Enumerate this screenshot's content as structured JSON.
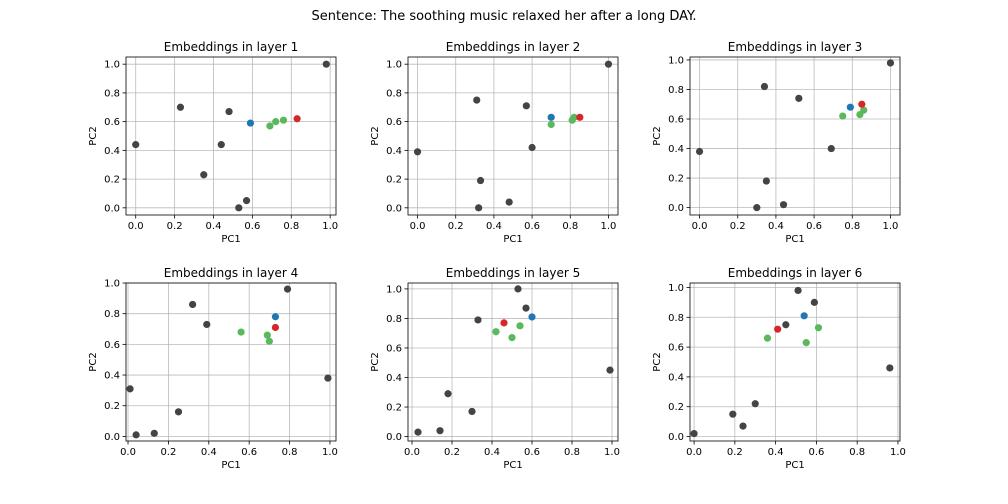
{
  "figure_title": "Sentence: The soothing music relaxed her after a long DAY.",
  "colors": {
    "gray": "#444444",
    "blue": "#1f77b4",
    "red": "#d62728",
    "green": "#5cb85c"
  },
  "chart_data": [
    {
      "type": "scatter",
      "title": "Embeddings in layer 1",
      "xlabel": "PC1",
      "ylabel": "PC2",
      "xlim": [
        -0.05,
        1.03
      ],
      "ylim": [
        -0.05,
        1.05
      ],
      "xticks": [
        "0.0",
        "0.2",
        "0.4",
        "0.6",
        "0.8",
        "1.0"
      ],
      "yticks": [
        "0.0",
        "0.2",
        "0.4",
        "0.6",
        "0.8",
        "1.0"
      ],
      "grid": true,
      "points": [
        {
          "x": 0.0,
          "y": 0.44,
          "color": "gray"
        },
        {
          "x": 0.23,
          "y": 0.7,
          "color": "gray"
        },
        {
          "x": 0.35,
          "y": 0.23,
          "color": "gray"
        },
        {
          "x": 0.44,
          "y": 0.44,
          "color": "gray"
        },
        {
          "x": 0.48,
          "y": 0.67,
          "color": "gray"
        },
        {
          "x": 0.53,
          "y": 0.0,
          "color": "gray"
        },
        {
          "x": 0.57,
          "y": 0.05,
          "color": "gray"
        },
        {
          "x": 0.98,
          "y": 1.0,
          "color": "gray"
        },
        {
          "x": 0.59,
          "y": 0.59,
          "color": "blue"
        },
        {
          "x": 0.69,
          "y": 0.57,
          "color": "green"
        },
        {
          "x": 0.72,
          "y": 0.6,
          "color": "green"
        },
        {
          "x": 0.76,
          "y": 0.61,
          "color": "green"
        },
        {
          "x": 0.83,
          "y": 0.62,
          "color": "red"
        }
      ]
    },
    {
      "type": "scatter",
      "title": "Embeddings in layer 2",
      "xlabel": "PC1",
      "ylabel": "PC2",
      "xlim": [
        -0.05,
        1.05
      ],
      "ylim": [
        -0.05,
        1.05
      ],
      "xticks": [
        "0.0",
        "0.2",
        "0.4",
        "0.6",
        "0.8",
        "1.0"
      ],
      "yticks": [
        "0.0",
        "0.2",
        "0.4",
        "0.6",
        "0.8",
        "1.0"
      ],
      "grid": true,
      "points": [
        {
          "x": 0.0,
          "y": 0.39,
          "color": "gray"
        },
        {
          "x": 0.31,
          "y": 0.75,
          "color": "gray"
        },
        {
          "x": 0.33,
          "y": 0.19,
          "color": "gray"
        },
        {
          "x": 0.32,
          "y": 0.0,
          "color": "gray"
        },
        {
          "x": 0.48,
          "y": 0.04,
          "color": "gray"
        },
        {
          "x": 0.57,
          "y": 0.71,
          "color": "gray"
        },
        {
          "x": 0.6,
          "y": 0.42,
          "color": "gray"
        },
        {
          "x": 1.0,
          "y": 1.0,
          "color": "gray"
        },
        {
          "x": 0.7,
          "y": 0.63,
          "color": "blue"
        },
        {
          "x": 0.7,
          "y": 0.58,
          "color": "green"
        },
        {
          "x": 0.81,
          "y": 0.61,
          "color": "green"
        },
        {
          "x": 0.82,
          "y": 0.63,
          "color": "green"
        },
        {
          "x": 0.85,
          "y": 0.63,
          "color": "red"
        }
      ]
    },
    {
      "type": "scatter",
      "title": "Embeddings in layer 3",
      "xlabel": "PC1",
      "ylabel": "PC2",
      "xlim": [
        -0.05,
        1.05
      ],
      "ylim": [
        -0.05,
        1.02
      ],
      "xticks": [
        "0.0",
        "0.2",
        "0.4",
        "0.6",
        "0.8",
        "1.0"
      ],
      "yticks": [
        "0.0",
        "0.2",
        "0.4",
        "0.6",
        "0.8",
        "1.0"
      ],
      "grid": true,
      "points": [
        {
          "x": 0.0,
          "y": 0.38,
          "color": "gray"
        },
        {
          "x": 0.3,
          "y": 0.0,
          "color": "gray"
        },
        {
          "x": 0.34,
          "y": 0.82,
          "color": "gray"
        },
        {
          "x": 0.35,
          "y": 0.18,
          "color": "gray"
        },
        {
          "x": 0.44,
          "y": 0.02,
          "color": "gray"
        },
        {
          "x": 0.52,
          "y": 0.74,
          "color": "gray"
        },
        {
          "x": 0.69,
          "y": 0.4,
          "color": "gray"
        },
        {
          "x": 1.0,
          "y": 0.98,
          "color": "gray"
        },
        {
          "x": 0.79,
          "y": 0.68,
          "color": "blue"
        },
        {
          "x": 0.75,
          "y": 0.62,
          "color": "green"
        },
        {
          "x": 0.84,
          "y": 0.63,
          "color": "green"
        },
        {
          "x": 0.86,
          "y": 0.66,
          "color": "green"
        },
        {
          "x": 0.85,
          "y": 0.7,
          "color": "red"
        }
      ]
    },
    {
      "type": "scatter",
      "title": "Embeddings in layer 4",
      "xlabel": "PC1",
      "ylabel": "PC2",
      "xlim": [
        -0.01,
        1.03
      ],
      "ylim": [
        -0.03,
        1.0
      ],
      "xticks": [
        "0.0",
        "0.2",
        "0.4",
        "0.6",
        "0.8",
        "1.0"
      ],
      "yticks": [
        "0.0",
        "0.2",
        "0.4",
        "0.6",
        "0.8",
        "1.0"
      ],
      "grid": true,
      "points": [
        {
          "x": 0.01,
          "y": 0.31,
          "color": "gray"
        },
        {
          "x": 0.04,
          "y": 0.01,
          "color": "gray"
        },
        {
          "x": 0.13,
          "y": 0.02,
          "color": "gray"
        },
        {
          "x": 0.25,
          "y": 0.16,
          "color": "gray"
        },
        {
          "x": 0.32,
          "y": 0.86,
          "color": "gray"
        },
        {
          "x": 0.39,
          "y": 0.73,
          "color": "gray"
        },
        {
          "x": 0.79,
          "y": 0.96,
          "color": "gray"
        },
        {
          "x": 0.99,
          "y": 0.38,
          "color": "gray"
        },
        {
          "x": 0.73,
          "y": 0.78,
          "color": "blue"
        },
        {
          "x": 0.56,
          "y": 0.68,
          "color": "green"
        },
        {
          "x": 0.69,
          "y": 0.66,
          "color": "green"
        },
        {
          "x": 0.7,
          "y": 0.62,
          "color": "green"
        },
        {
          "x": 0.73,
          "y": 0.71,
          "color": "red"
        }
      ]
    },
    {
      "type": "scatter",
      "title": "Embeddings in layer 5",
      "xlabel": "PC1",
      "ylabel": "PC2",
      "xlim": [
        -0.02,
        1.03
      ],
      "ylim": [
        -0.03,
        1.04
      ],
      "xticks": [
        "0.0",
        "0.2",
        "0.4",
        "0.6",
        "0.8",
        "1.0"
      ],
      "yticks": [
        "0.0",
        "0.2",
        "0.4",
        "0.6",
        "0.8",
        "1.0"
      ],
      "grid": true,
      "points": [
        {
          "x": 0.03,
          "y": 0.03,
          "color": "gray"
        },
        {
          "x": 0.14,
          "y": 0.04,
          "color": "gray"
        },
        {
          "x": 0.18,
          "y": 0.29,
          "color": "gray"
        },
        {
          "x": 0.3,
          "y": 0.17,
          "color": "gray"
        },
        {
          "x": 0.33,
          "y": 0.79,
          "color": "gray"
        },
        {
          "x": 0.53,
          "y": 1.0,
          "color": "gray"
        },
        {
          "x": 0.57,
          "y": 0.87,
          "color": "gray"
        },
        {
          "x": 0.99,
          "y": 0.45,
          "color": "gray"
        },
        {
          "x": 0.6,
          "y": 0.81,
          "color": "blue"
        },
        {
          "x": 0.42,
          "y": 0.71,
          "color": "green"
        },
        {
          "x": 0.5,
          "y": 0.67,
          "color": "green"
        },
        {
          "x": 0.54,
          "y": 0.75,
          "color": "green"
        },
        {
          "x": 0.46,
          "y": 0.77,
          "color": "red"
        }
      ]
    },
    {
      "type": "scatter",
      "title": "Embeddings in layer 6",
      "xlabel": "PC1",
      "ylabel": "PC2",
      "xlim": [
        -0.02,
        1.01
      ],
      "ylim": [
        -0.03,
        1.03
      ],
      "xticks": [
        "0.0",
        "0.2",
        "0.4",
        "0.6",
        "0.8",
        "1.0"
      ],
      "yticks": [
        "0.0",
        "0.2",
        "0.4",
        "0.6",
        "0.8",
        "1.0"
      ],
      "grid": true,
      "points": [
        {
          "x": 0.0,
          "y": 0.02,
          "color": "gray"
        },
        {
          "x": 0.19,
          "y": 0.15,
          "color": "gray"
        },
        {
          "x": 0.24,
          "y": 0.07,
          "color": "gray"
        },
        {
          "x": 0.3,
          "y": 0.22,
          "color": "gray"
        },
        {
          "x": 0.45,
          "y": 0.75,
          "color": "gray"
        },
        {
          "x": 0.51,
          "y": 0.98,
          "color": "gray"
        },
        {
          "x": 0.59,
          "y": 0.9,
          "color": "gray"
        },
        {
          "x": 0.96,
          "y": 0.46,
          "color": "gray"
        },
        {
          "x": 0.54,
          "y": 0.81,
          "color": "blue"
        },
        {
          "x": 0.36,
          "y": 0.66,
          "color": "green"
        },
        {
          "x": 0.55,
          "y": 0.63,
          "color": "green"
        },
        {
          "x": 0.61,
          "y": 0.73,
          "color": "green"
        },
        {
          "x": 0.41,
          "y": 0.72,
          "color": "red"
        }
      ]
    }
  ]
}
